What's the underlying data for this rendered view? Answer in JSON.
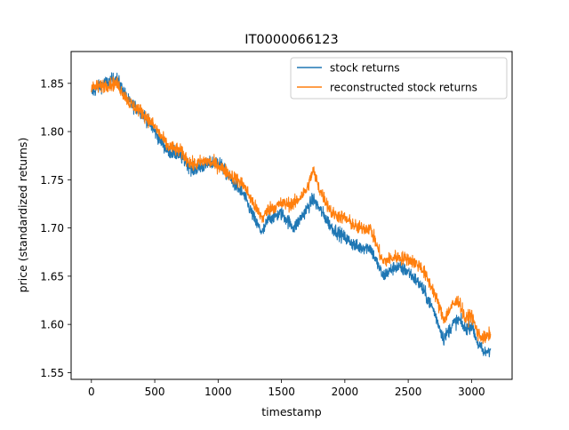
{
  "chart_data": {
    "type": "line",
    "title": "IT0000066123",
    "xlabel": "timestamp",
    "ylabel": "price (standardized returns)",
    "xlim": [
      -160,
      3320
    ],
    "ylim": [
      1.543,
      1.883
    ],
    "xticks": [
      0,
      500,
      1000,
      1500,
      2000,
      2500,
      3000
    ],
    "yticks": [
      1.55,
      1.6,
      1.65,
      1.7,
      1.75,
      1.8,
      1.85
    ],
    "grid": false,
    "legend_position": "upper right",
    "series": [
      {
        "name": "stock returns",
        "color": "#1f77b4",
        "x": [
          0,
          100,
          200,
          300,
          400,
          500,
          600,
          700,
          800,
          900,
          1000,
          1100,
          1200,
          1300,
          1350,
          1400,
          1500,
          1600,
          1700,
          1750,
          1800,
          1900,
          2000,
          2100,
          2200,
          2300,
          2400,
          2500,
          2600,
          2700,
          2780,
          2850,
          2900,
          2950,
          3000,
          3050,
          3100,
          3150
        ],
        "y": [
          1.84,
          1.85,
          1.855,
          1.83,
          1.82,
          1.8,
          1.78,
          1.775,
          1.76,
          1.765,
          1.77,
          1.75,
          1.735,
          1.705,
          1.695,
          1.71,
          1.715,
          1.7,
          1.72,
          1.73,
          1.72,
          1.7,
          1.69,
          1.68,
          1.68,
          1.65,
          1.66,
          1.655,
          1.64,
          1.615,
          1.585,
          1.6,
          1.605,
          1.595,
          1.6,
          1.58,
          1.57,
          1.575
        ]
      },
      {
        "name": "reconstructed stock returns",
        "color": "#ff7f0e",
        "x": [
          0,
          100,
          200,
          300,
          400,
          500,
          600,
          700,
          800,
          900,
          1000,
          1100,
          1200,
          1300,
          1350,
          1400,
          1500,
          1600,
          1700,
          1750,
          1800,
          1900,
          2000,
          2100,
          2200,
          2300,
          2400,
          2500,
          2600,
          2700,
          2780,
          2850,
          2900,
          2950,
          3000,
          3050,
          3100,
          3150
        ],
        "y": [
          1.845,
          1.848,
          1.85,
          1.83,
          1.82,
          1.805,
          1.785,
          1.78,
          1.765,
          1.77,
          1.765,
          1.755,
          1.745,
          1.72,
          1.71,
          1.72,
          1.725,
          1.725,
          1.74,
          1.76,
          1.74,
          1.715,
          1.71,
          1.7,
          1.7,
          1.665,
          1.67,
          1.668,
          1.66,
          1.635,
          1.605,
          1.62,
          1.625,
          1.605,
          1.61,
          1.59,
          1.585,
          1.59
        ]
      }
    ]
  }
}
